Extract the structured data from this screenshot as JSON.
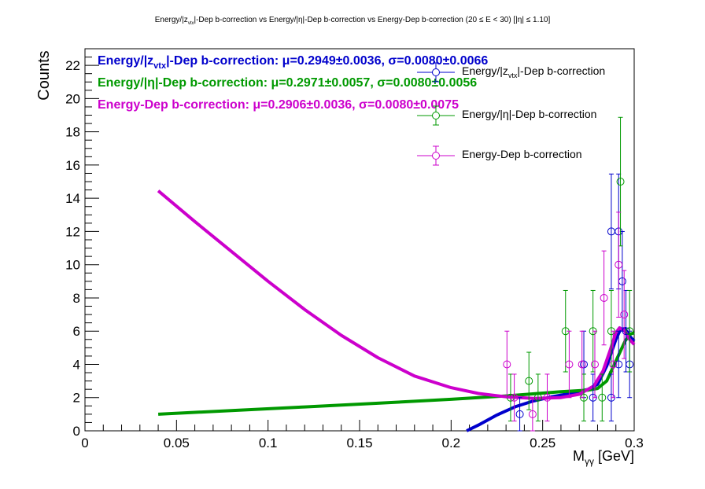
{
  "chart_data": {
    "type": "scatter",
    "title": {
      "part1": "Energy/|z",
      "part1_sub": "vtx",
      "part2": "|-Dep b-correction vs Energy/|η|-Dep b-correction vs Energy-Dep b-correction   (20 ≤ E < 30)   [|η| ≤ 1.10]"
    },
    "xlabel": {
      "main": "M",
      "sub": "γγ",
      "unit": " [GeV]"
    },
    "ylabel": "Counts",
    "xlim": [
      0,
      0.3
    ],
    "ylim": [
      0,
      23
    ],
    "x_ticks": [
      0,
      0.05,
      0.1,
      0.15,
      0.2,
      0.25,
      0.3
    ],
    "x_tick_labels": [
      "0",
      "0.05",
      "0.1",
      "0.15",
      "0.2",
      "0.25",
      "0.3"
    ],
    "y_ticks": [
      0,
      2,
      4,
      6,
      8,
      10,
      12,
      14,
      16,
      18,
      20,
      22
    ],
    "y_tick_labels": [
      "0",
      "2",
      "4",
      "6",
      "8",
      "10",
      "12",
      "14",
      "16",
      "18",
      "20",
      "22"
    ],
    "fit_annotations": [
      {
        "prefix": "Energy/|z",
        "sub": "vtx",
        "text": "|-Dep b-correction: μ=0.2949±0.0036, σ=0.0080±0.0066",
        "color": "#0000cc"
      },
      {
        "prefix": "",
        "sub": "",
        "text": "Energy/|η|-Dep b-correction: μ=0.2971±0.0057, σ=0.0080±0.0056",
        "color": "#009900"
      },
      {
        "prefix": "",
        "sub": "",
        "text": "Energy-Dep b-correction: μ=0.2906±0.0036, σ=0.0080±0.0075",
        "color": "#cc00cc"
      }
    ],
    "legend_placement": "top-right",
    "series": [
      {
        "name": "Energy/|zvtx|-Dep b-correction",
        "legend_label": {
          "prefix": "Energy/|z",
          "sub": "vtx",
          "suffix": "|-Dep b-correction"
        },
        "color": "#0000cc",
        "points": [
          {
            "x": 0.2375,
            "y": 1,
            "err": 1
          },
          {
            "x": 0.2875,
            "y": 2,
            "err": 1.41
          },
          {
            "x": 0.2875,
            "y": 12,
            "err": 3.46
          },
          {
            "x": 0.2915,
            "y": 12,
            "err": 3.46
          },
          {
            "x": 0.2915,
            "y": 4,
            "err": 2
          },
          {
            "x": 0.2935,
            "y": 9,
            "err": 3
          },
          {
            "x": 0.2955,
            "y": 6,
            "err": 2.45
          },
          {
            "x": 0.2975,
            "y": 4,
            "err": 2
          },
          {
            "x": 0.2725,
            "y": 4,
            "err": 2
          },
          {
            "x": 0.2775,
            "y": 2,
            "err": 1.41
          }
        ],
        "fit": [
          [
            0.2085,
            0
          ],
          [
            0.215,
            0.35
          ],
          [
            0.225,
            0.95
          ],
          [
            0.235,
            1.45
          ],
          [
            0.245,
            1.8
          ],
          [
            0.255,
            2.05
          ],
          [
            0.265,
            2.25
          ],
          [
            0.275,
            2.5
          ],
          [
            0.28,
            2.8
          ],
          [
            0.285,
            3.9
          ],
          [
            0.29,
            5.5
          ],
          [
            0.2925,
            6.1
          ],
          [
            0.295,
            6.15
          ],
          [
            0.2975,
            5.7
          ],
          [
            0.3,
            5.4
          ]
        ]
      },
      {
        "name": "Energy/|η|-Dep b-correction",
        "legend_label": {
          "prefix": "Energy/|η|-Dep b-correction",
          "sub": "",
          "suffix": ""
        },
        "color": "#009900",
        "points": [
          {
            "x": 0.2325,
            "y": 2,
            "err": 1.41
          },
          {
            "x": 0.2425,
            "y": 3,
            "err": 1.73
          },
          {
            "x": 0.2475,
            "y": 2,
            "err": 1.41
          },
          {
            "x": 0.2625,
            "y": 6,
            "err": 2.45
          },
          {
            "x": 0.2725,
            "y": 2,
            "err": 1.41
          },
          {
            "x": 0.2775,
            "y": 6,
            "err": 2.45
          },
          {
            "x": 0.2825,
            "y": 2,
            "err": 1.41
          },
          {
            "x": 0.2875,
            "y": 6,
            "err": 2.45
          },
          {
            "x": 0.2925,
            "y": 15,
            "err": 3.87
          },
          {
            "x": 0.2975,
            "y": 6,
            "err": 2.45
          }
        ],
        "fit": [
          [
            0.04,
            1.0
          ],
          [
            0.08,
            1.22
          ],
          [
            0.12,
            1.44
          ],
          [
            0.16,
            1.66
          ],
          [
            0.2,
            1.9
          ],
          [
            0.23,
            2.1
          ],
          [
            0.26,
            2.35
          ],
          [
            0.275,
            2.45
          ],
          [
            0.28,
            2.55
          ],
          [
            0.285,
            3.0
          ],
          [
            0.29,
            4.2
          ],
          [
            0.295,
            5.4
          ],
          [
            0.2975,
            5.8
          ],
          [
            0.3,
            5.9
          ]
        ]
      },
      {
        "name": "Energy-Dep b-correction",
        "legend_label": {
          "prefix": "Energy-Dep b-correction",
          "sub": "",
          "suffix": ""
        },
        "color": "#cc00cc",
        "points": [
          {
            "x": 0.2305,
            "y": 4,
            "err": 2
          },
          {
            "x": 0.2345,
            "y": 2,
            "err": 1.41
          },
          {
            "x": 0.2445,
            "y": 1,
            "err": 1
          },
          {
            "x": 0.2525,
            "y": 2,
            "err": 1.41
          },
          {
            "x": 0.2645,
            "y": 4,
            "err": 2
          },
          {
            "x": 0.2715,
            "y": 4,
            "err": 2
          },
          {
            "x": 0.2785,
            "y": 4,
            "err": 2
          },
          {
            "x": 0.2835,
            "y": 8,
            "err": 2.83
          },
          {
            "x": 0.2915,
            "y": 10,
            "err": 3.16
          },
          {
            "x": 0.2945,
            "y": 7,
            "err": 2.65
          },
          {
            "x": 0.2885,
            "y": 4,
            "err": 2
          }
        ],
        "fit": [
          [
            0.04,
            14.45
          ],
          [
            0.06,
            12.6
          ],
          [
            0.08,
            10.8
          ],
          [
            0.1,
            9.0
          ],
          [
            0.12,
            7.3
          ],
          [
            0.14,
            5.75
          ],
          [
            0.16,
            4.4
          ],
          [
            0.18,
            3.3
          ],
          [
            0.2,
            2.6
          ],
          [
            0.215,
            2.25
          ],
          [
            0.23,
            2.05
          ],
          [
            0.245,
            1.95
          ],
          [
            0.26,
            2.0
          ],
          [
            0.27,
            2.2
          ],
          [
            0.278,
            2.7
          ],
          [
            0.283,
            3.6
          ],
          [
            0.287,
            4.9
          ],
          [
            0.29,
            5.9
          ],
          [
            0.292,
            6.2
          ],
          [
            0.295,
            6.0
          ],
          [
            0.2975,
            5.5
          ],
          [
            0.3,
            5.2
          ]
        ]
      }
    ]
  }
}
